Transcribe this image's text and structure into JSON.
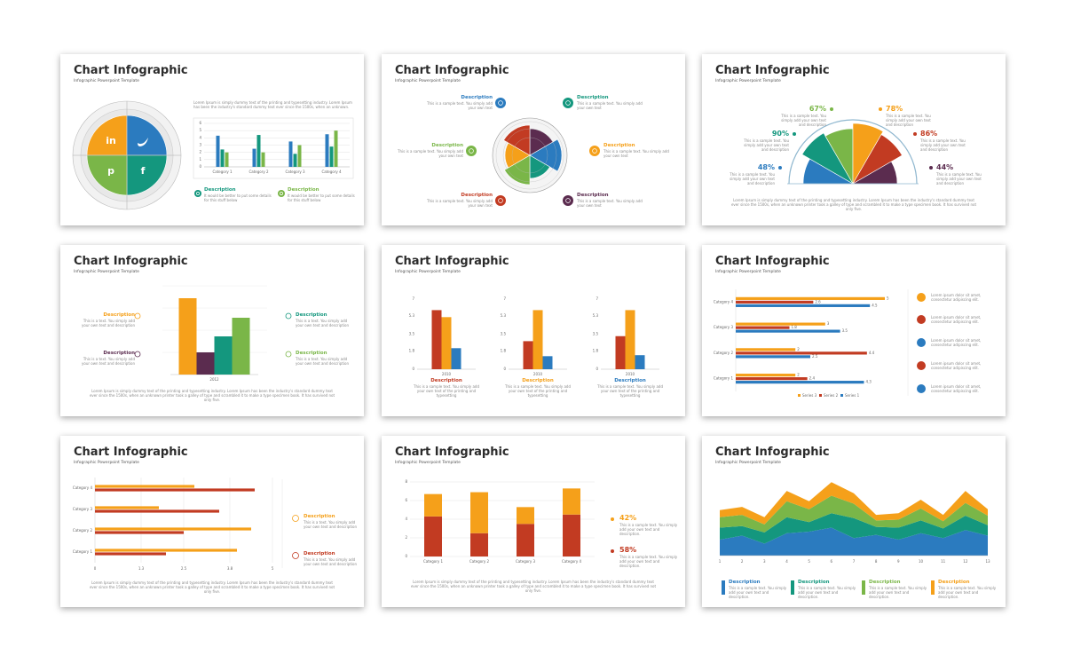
{
  "slides": [
    {
      "title": "Chart Infographic",
      "subtitle": "Infographic Powerpoint Template",
      "icons": [
        "in",
        "p",
        "f"
      ],
      "body": "Lorem Ipsum is simply dummy text of the printing and typesetting industry. Lorem Ipsum has been the industry's standard dummy text ever since the 1500s, when an unknown.",
      "chart": {
        "type": "bar",
        "categories": [
          "Category 1",
          "Category 2",
          "Category 3",
          "Category 4"
        ],
        "ylim": [
          0,
          6
        ],
        "yticks": [
          0,
          1,
          2,
          3,
          4,
          5,
          6
        ],
        "grid": true,
        "series": [
          {
            "color": "#2b7bbf",
            "values": [
              4.3,
              2.5,
              3.5,
              4.5
            ]
          },
          {
            "color": "#14977e",
            "values": [
              2.4,
              4.4,
              1.8,
              2.8
            ]
          },
          {
            "color": "#7ab648",
            "values": [
              2,
              2,
              3,
              5
            ]
          }
        ]
      },
      "items": [
        {
          "heading": "Description",
          "text": "It would be better to put some details for this stuff below",
          "color": "#14977e"
        },
        {
          "heading": "Description",
          "text": "It would be better to put some details for this stuff below",
          "color": "#7ab648"
        }
      ]
    },
    {
      "title": "Chart Infographic",
      "subtitle": "Infographic Powerpoint Template",
      "items": [
        {
          "heading": "Description",
          "text": "This is a sample text. You simply add your own text",
          "color": "#2b7bbf"
        },
        {
          "heading": "Description",
          "text": "This is a sample text. You simply add your own text",
          "color": "#14977e"
        },
        {
          "heading": "Description",
          "text": "This is a sample text. You simply add your own text",
          "color": "#7ab648"
        },
        {
          "heading": "Description",
          "text": "This is a sample text. You simply add your own text",
          "color": "#f5a01a"
        },
        {
          "heading": "Description",
          "text": "This is a sample text. You simply add your own text",
          "color": "#c23b22"
        },
        {
          "heading": "Description",
          "text": "This is a sample text. You simply add your own text",
          "color": "#5b2c4f"
        }
      ]
    },
    {
      "title": "Chart Infographic",
      "subtitle": "Infographic Powerpoint Template",
      "items": [
        {
          "heading": "67%",
          "text": "This is a sample text. You simply add your own text and description",
          "color": "#7ab648"
        },
        {
          "heading": "78%",
          "text": "This is a sample text. You simply add your own text and description",
          "color": "#f5a01a"
        },
        {
          "heading": "90%",
          "text": "This is a sample text. You simply add your own text and description",
          "color": "#14977e"
        },
        {
          "heading": "86%",
          "text": "This is a sample text. You simply add your own text and description",
          "color": "#c23b22"
        },
        {
          "heading": "48%",
          "text": "This is a sample text. You simply add your own text and description",
          "color": "#2b7bbf"
        },
        {
          "heading": "44%",
          "text": "This is a sample text. You simply add your own text and description",
          "color": "#5b2c4f"
        }
      ],
      "body": "Lorem Ipsum is simply dummy text of the printing and typesetting industry. Lorem Ipsum has been the industry's standard dummy text ever since the 1500s, when an unknown printer took a galley of type and scrambled it to make a type specimen book. It has survived not only five."
    },
    {
      "title": "Chart Infographic",
      "subtitle": "Infographic Powerpoint Template",
      "chart": {
        "type": "bar",
        "categories": [
          "2012"
        ],
        "ylim": [
          0,
          10
        ],
        "series": [
          {
            "color": "#f5a01a",
            "values": [
              8.6
            ]
          },
          {
            "color": "#5b2c4f",
            "values": [
              2.5
            ]
          },
          {
            "color": "#14977e",
            "values": [
              4.3
            ]
          },
          {
            "color": "#7ab648",
            "values": [
              6.4
            ]
          }
        ]
      },
      "items": [
        {
          "heading": "Description",
          "text": "This is a text. You simply add your own text and description",
          "color": "#f5a01a"
        },
        {
          "heading": "Description",
          "text": "This is a text. You simply add your own text and description",
          "color": "#5b2c4f"
        },
        {
          "heading": "Description",
          "text": "This is a text. You simply add your own text and description",
          "color": "#14977e"
        },
        {
          "heading": "Description",
          "text": "This is a text. You simply add your own text and description",
          "color": "#7ab648"
        }
      ],
      "body": "Lorem Ipsum is simply dummy text of the printing and typesetting industry. Lorem Ipsum has been the industry's standard dummy text ever since the 1500s, when an unknown printer took a galley of type and scrambled it to make a type specimen book. It has survived not only five."
    },
    {
      "title": "Chart Infographic",
      "subtitle": "Infographic Powerpoint Template",
      "charts": [
        {
          "type": "bar",
          "categories": [
            "2010"
          ],
          "ylim": [
            0,
            7
          ],
          "yticks": [
            0,
            1.8,
            3.5,
            5.3,
            7
          ],
          "series": [
            {
              "color": "#c23b22",
              "values": [
                5.9
              ]
            },
            {
              "color": "#f5a01a",
              "values": [
                5.2
              ]
            },
            {
              "color": "#2b7bbf",
              "values": [
                2.1
              ]
            }
          ]
        },
        {
          "type": "bar",
          "categories": [
            "2010"
          ],
          "ylim": [
            0,
            7
          ],
          "yticks": [
            0,
            1.8,
            3.5,
            5.3,
            7
          ],
          "series": [
            {
              "color": "#c23b22",
              "values": [
                2.8
              ]
            },
            {
              "color": "#f5a01a",
              "values": [
                5.9
              ]
            },
            {
              "color": "#2b7bbf",
              "values": [
                1.3
              ]
            }
          ]
        },
        {
          "type": "bar",
          "categories": [
            "2010"
          ],
          "ylim": [
            0,
            7
          ],
          "yticks": [
            0,
            1.8,
            3.5,
            5.3,
            7
          ],
          "series": [
            {
              "color": "#c23b22",
              "values": [
                3.3
              ]
            },
            {
              "color": "#f5a01a",
              "values": [
                5.9
              ]
            },
            {
              "color": "#2b7bbf",
              "values": [
                1.4
              ]
            }
          ]
        }
      ],
      "items": [
        {
          "heading": "Description",
          "text": "This is a sample text. You simply add your own text of the printing and typesetting",
          "color": "#c23b22"
        },
        {
          "heading": "Description",
          "text": "This is a sample text. You simply add your own text of the printing and typesetting",
          "color": "#f5a01a"
        },
        {
          "heading": "Description",
          "text": "This is a sample text. You simply add your own text of the printing and typesetting",
          "color": "#2b7bbf"
        }
      ]
    },
    {
      "title": "Chart Infographic",
      "subtitle": "Infographic Powerpoint Template",
      "chart": {
        "type": "barh",
        "categories": [
          "Category 1",
          "Category 2",
          "Category 3",
          "Category 4"
        ],
        "xlim": [
          0,
          5
        ],
        "series": [
          {
            "name": "Series 1",
            "color": "#2b7bbf",
            "values": [
              4.3,
              2.5,
              3.5,
              4.5
            ]
          },
          {
            "name": "Series 2",
            "color": "#c23b22",
            "values": [
              2.4,
              4.4,
              1.8,
              2.6
            ]
          },
          {
            "name": "Series 3",
            "color": "#f5a01a",
            "values": [
              2,
              2,
              3,
              5
            ]
          }
        ]
      },
      "bullets": [
        {
          "text": "Lorem ipsum dolor sit amet, consectetur adipiscing elit.",
          "color": "#f5a01a"
        },
        {
          "text": "Lorem ipsum dolor sit amet, consectetur adipiscing elit.",
          "color": "#c23b22"
        },
        {
          "text": "Lorem ipsum dolor sit amet, consectetur adipiscing elit.",
          "color": "#2b7bbf"
        },
        {
          "text": "Lorem ipsum dolor sit amet, consectetur adipiscing elit.",
          "color": "#c23b22"
        },
        {
          "text": "Lorem ipsum dolor sit amet, consectetur adipiscing elit.",
          "color": "#2b7bbf"
        }
      ]
    },
    {
      "title": "Chart Infographic",
      "subtitle": "Infographic Powerpoint Template",
      "chart": {
        "type": "barh",
        "categories": [
          "Category 1",
          "Category 2",
          "Category 3",
          "Category 4"
        ],
        "xlim": [
          0,
          5
        ],
        "xticks": [
          0,
          1.3,
          2.5,
          3.8,
          5
        ],
        "grid": true,
        "series": [
          {
            "color": "#c23b22",
            "values": [
              2,
              2.5,
              3.5,
              4.5
            ]
          },
          {
            "color": "#f5a01a",
            "values": [
              4,
              4.4,
              1.8,
              2.8
            ]
          }
        ]
      },
      "items": [
        {
          "heading": "Description",
          "text": "This is a text. You simply add your own text and description",
          "color": "#f5a01a"
        },
        {
          "heading": "Description",
          "text": "This is a text. You simply add your own text and description",
          "color": "#c23b22"
        }
      ],
      "body": "Lorem Ipsum is simply dummy text of the printing and typesetting industry. Lorem Ipsum has been the industry's standard dummy text ever since the 1500s, when an unknown printer took a galley of type and scrambled it to make a type specimen book. It has survived not only five."
    },
    {
      "title": "Chart Infographic",
      "subtitle": "Infographic Powerpoint Template",
      "chart": {
        "type": "stacked_bar",
        "categories": [
          "Category 1",
          "Category 2",
          "Category 3",
          "Category 4"
        ],
        "ylim": [
          0,
          8
        ],
        "yticks": [
          0,
          2,
          4,
          6,
          8
        ],
        "grid": true,
        "series": [
          {
            "color": "#c23b22",
            "values": [
              4.3,
              2.5,
              3.5,
              4.5
            ]
          },
          {
            "color": "#f5a01a",
            "values": [
              2.4,
              4.4,
              1.8,
              2.8
            ]
          }
        ]
      },
      "items": [
        {
          "heading": "42%",
          "text": "This is a sample text. You simply add your own text and description.",
          "color": "#f5a01a"
        },
        {
          "heading": "58%",
          "text": "This is a sample text. You simply add your own text and description.",
          "color": "#c23b22"
        }
      ],
      "body": "Lorem Ipsum is simply dummy text of the printing and typesetting industry. Lorem Ipsum has been the industry's standard dummy text ever since the 1500s, when an unknown printer took a galley of type and scrambled it to make a type specimen book. It has survived not only five."
    },
    {
      "title": "Chart Infographic",
      "subtitle": "Infographic Powerpoint Template",
      "chart": {
        "type": "area",
        "x": [
          1,
          2,
          3,
          4,
          5,
          6,
          7,
          8,
          9,
          10,
          11,
          12,
          13
        ],
        "xlim": [
          1,
          13
        ],
        "ylim": [
          0,
          10
        ],
        "series": [
          {
            "color": "#2b7bbf",
            "values": [
              2.0,
              2.5,
              1.5,
              2.8,
              3.0,
              3.5,
              2.2,
              2.6,
              2.0,
              2.8,
              2.2,
              3.2,
              2.5
            ]
          },
          {
            "color": "#14977e",
            "values": [
              1.5,
              1.2,
              1.4,
              2.0,
              1.2,
              1.8,
              2.5,
              1.0,
              1.5,
              1.6,
              1.2,
              1.8,
              1.3
            ]
          },
          {
            "color": "#7ab648",
            "values": [
              1.3,
              1.4,
              1.0,
              2.0,
              1.6,
              2.2,
              1.8,
              0.8,
              1.0,
              1.5,
              0.9,
              1.6,
              1.2
            ]
          },
          {
            "color": "#f5a01a",
            "values": [
              0.9,
              1.0,
              0.9,
              1.3,
              1.0,
              1.7,
              1.3,
              0.7,
              0.8,
              1.1,
              0.8,
              1.5,
              0.8
            ]
          }
        ]
      },
      "items": [
        {
          "heading": "Description",
          "text": "This is a sample text. You simply add your own text and description.",
          "color": "#2b7bbf"
        },
        {
          "heading": "Description",
          "text": "This is a sample text. You simply add your own text and description.",
          "color": "#14977e"
        },
        {
          "heading": "Description",
          "text": "This is a sample text. You simply add your own text and description.",
          "color": "#7ab648"
        },
        {
          "heading": "Description",
          "text": "This is a sample text. You simply add your own text and description.",
          "color": "#f5a01a"
        }
      ]
    }
  ]
}
